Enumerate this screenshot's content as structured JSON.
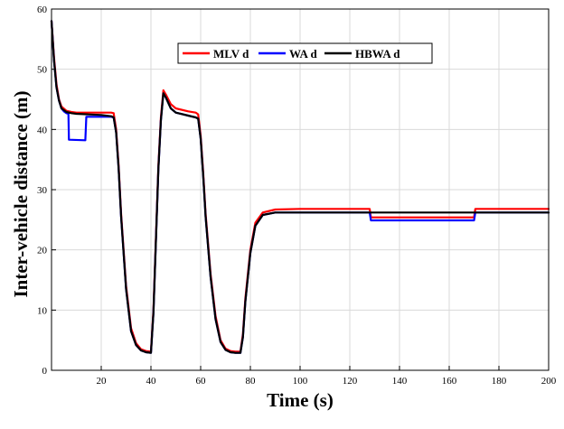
{
  "chart_data": {
    "type": "line",
    "title": "",
    "xlabel": "Time (s)",
    "ylabel": "Inter-vehicle distance (m)",
    "xlim": [
      0,
      200
    ],
    "ylim": [
      0,
      60
    ],
    "xticks": [
      20,
      40,
      60,
      80,
      100,
      120,
      140,
      160,
      180,
      200
    ],
    "yticks": [
      0,
      10,
      20,
      30,
      40,
      50,
      60
    ],
    "grid": true,
    "legend_position": "top-center",
    "series": [
      {
        "name": "MLV d",
        "color": "#ff0000",
        "x": [
          0,
          1,
          2,
          3,
          4,
          6,
          8,
          10,
          15,
          20,
          24,
          25,
          26,
          27,
          28,
          30,
          32,
          34,
          36,
          38,
          40,
          41,
          42,
          43,
          44,
          45,
          46,
          48,
          50,
          55,
          58,
          59,
          60,
          61,
          62,
          64,
          66,
          68,
          70,
          72,
          74,
          76,
          77,
          78,
          80,
          82,
          85,
          90,
          100,
          128,
          128.5,
          170,
          170.5,
          200
        ],
        "y": [
          58,
          52,
          47.5,
          45,
          43.8,
          43.1,
          42.9,
          42.8,
          42.8,
          42.8,
          42.8,
          42.7,
          40,
          34,
          26,
          14,
          7,
          4.5,
          3.5,
          3.2,
          3.1,
          10,
          22,
          34,
          42,
          46.5,
          45.8,
          44.2,
          43.5,
          43,
          42.8,
          42.5,
          39,
          33,
          26,
          16,
          9,
          5,
          3.6,
          3.2,
          3.1,
          3.1,
          6,
          12,
          20,
          24.5,
          26.2,
          26.7,
          26.8,
          26.8,
          25.4,
          25.4,
          26.8,
          26.8
        ]
      },
      {
        "name": "WA d",
        "color": "#0000ff",
        "x": [
          0,
          1,
          2,
          3,
          4,
          5,
          6,
          6.8,
          7,
          13.6,
          14,
          20,
          24,
          25,
          26,
          27,
          28,
          30,
          32,
          34,
          36,
          38,
          40,
          41,
          42,
          43,
          44,
          45,
          46,
          48,
          50,
          55,
          58,
          59,
          60,
          61,
          62,
          64,
          66,
          68,
          70,
          72,
          74,
          76,
          77,
          78,
          80,
          82,
          85,
          90,
          100,
          128,
          128.5,
          170,
          170.5,
          200
        ],
        "y": [
          58,
          51.5,
          47,
          44.8,
          43.5,
          43,
          42.7,
          42.6,
          38.3,
          38.2,
          42.1,
          42.1,
          42.1,
          42,
          39.5,
          33.5,
          25.5,
          13.5,
          6.5,
          4.2,
          3.3,
          3,
          2.9,
          9.5,
          21.5,
          33.5,
          41.5,
          46,
          45.3,
          43.5,
          42.8,
          42.3,
          42,
          41.8,
          38.5,
          32.5,
          25.5,
          15.5,
          8.5,
          4.7,
          3.4,
          3,
          2.9,
          2.9,
          5.5,
          11.5,
          19.5,
          24,
          25.8,
          26.2,
          26.2,
          26.2,
          24.9,
          24.9,
          26.2,
          26.2
        ]
      },
      {
        "name": "HBWA d",
        "color": "#000000",
        "x": [
          0,
          1,
          2,
          3,
          4,
          6,
          8,
          10,
          15,
          20,
          24,
          25,
          26,
          27,
          28,
          30,
          32,
          34,
          36,
          38,
          40,
          41,
          42,
          43,
          44,
          45,
          46,
          48,
          50,
          55,
          58,
          59,
          60,
          61,
          62,
          64,
          66,
          68,
          70,
          72,
          74,
          76,
          77,
          78,
          80,
          82,
          85,
          90,
          100,
          128,
          128.5,
          170,
          170.5,
          200
        ],
        "y": [
          58,
          51.5,
          47,
          44.8,
          43.5,
          42.9,
          42.7,
          42.6,
          42.5,
          42.4,
          42.2,
          42,
          39.5,
          33.5,
          25.5,
          13.5,
          6.5,
          4.2,
          3.3,
          3,
          2.9,
          9.5,
          21.5,
          33.5,
          41.5,
          46,
          45.3,
          43.5,
          42.8,
          42.3,
          42,
          41.8,
          38.5,
          32.5,
          25.5,
          15.5,
          8.5,
          4.7,
          3.4,
          3,
          2.9,
          2.9,
          5.5,
          11.5,
          19.5,
          24,
          25.8,
          26.2,
          26.2,
          26.2,
          26.2,
          26.2,
          26.2,
          26.2
        ]
      }
    ]
  }
}
